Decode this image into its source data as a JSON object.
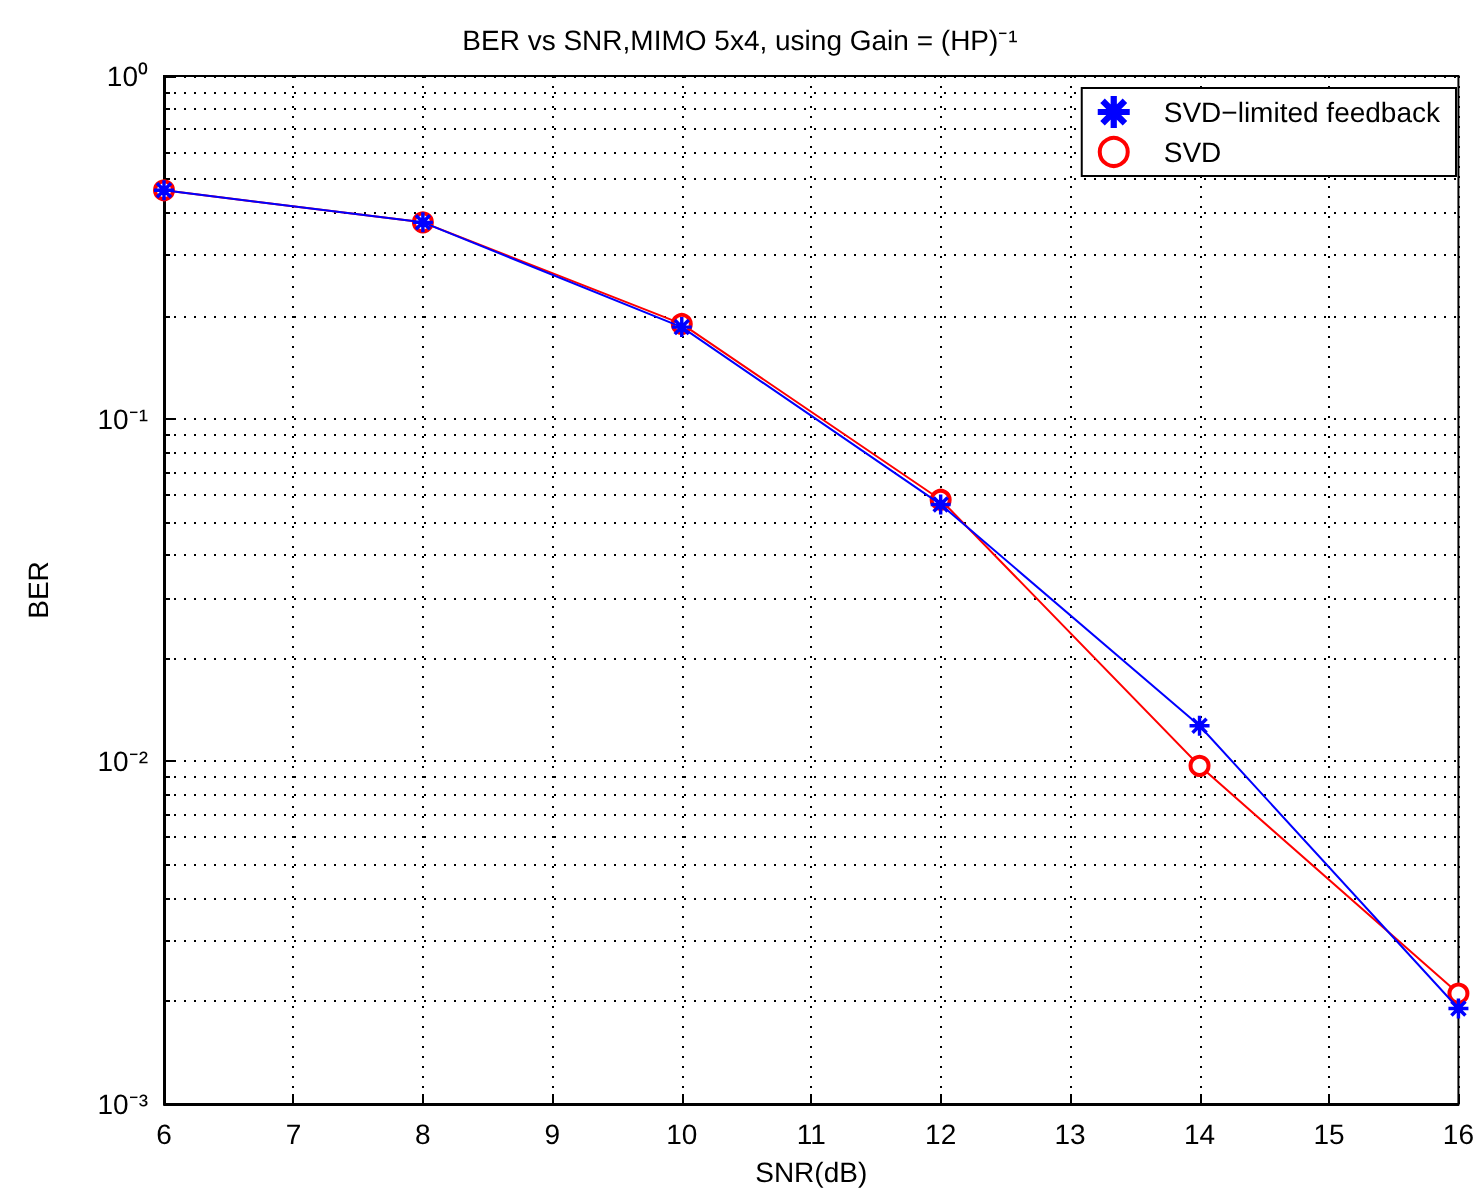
{
  "chart_data": {
    "type": "line",
    "title": "BER vs SNR,MIMO 5x4, using Gain = (HP)⁻¹",
    "xlabel": "SNR(dB)",
    "ylabel": "BER",
    "x": [
      6,
      8,
      10,
      12,
      14,
      16
    ],
    "series": [
      {
        "name": "SVD−limited feedback",
        "color": "#0000ff",
        "marker": "star",
        "values": [
          0.464,
          0.374,
          0.185,
          0.0562,
          0.0127,
          0.0019
        ]
      },
      {
        "name": "SVD",
        "color": "#ff0000",
        "marker": "circle",
        "values": [
          0.464,
          0.374,
          0.189,
          0.058,
          0.0097,
          0.0021
        ]
      }
    ],
    "log": "y",
    "xlim": [
      6,
      16
    ],
    "xticks": [
      6,
      7,
      8,
      9,
      10,
      11,
      12,
      13,
      14,
      15,
      16
    ],
    "ylim": [
      0.001,
      1
    ],
    "yticks": [
      {
        "value": 0.001,
        "label": "10⁻³"
      },
      {
        "value": 0.01,
        "label": "10⁻²"
      },
      {
        "value": 0.1,
        "label": "10⁻¹"
      },
      {
        "value": 1,
        "label": "10⁰"
      }
    ],
    "grid": true,
    "legend": "top right",
    "line_style": "solid"
  }
}
